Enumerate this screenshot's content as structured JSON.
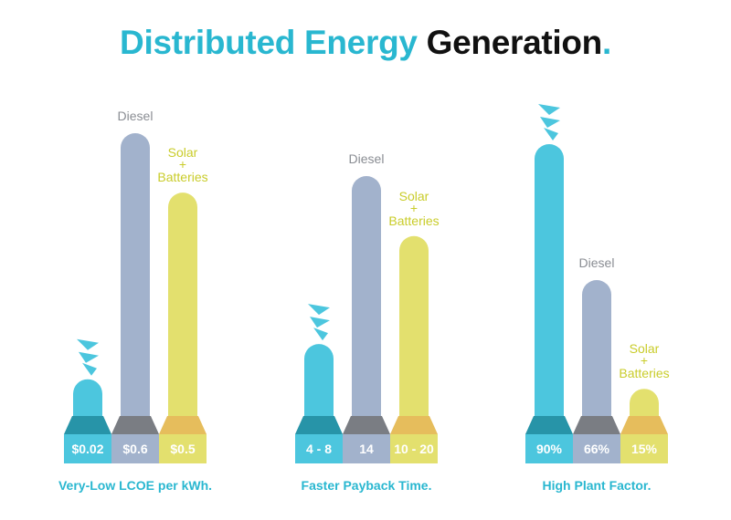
{
  "title": {
    "part1": "Distributed Energy",
    "part2": "Generation",
    "part3": "."
  },
  "colors": {
    "accent": "#29b7d0",
    "brand": "#4cc6de",
    "brand_base": "#2794a8",
    "brand_plate": "#4cc6de",
    "diesel": "#a2b2cc",
    "diesel_base": "#7a7d83",
    "diesel_plate": "#a2b2cc",
    "diesel_text": "#8a8d93",
    "solar": "#e3e06e",
    "solar_base": "#e6bd5c",
    "solar_plate": "#e3e06e",
    "solar_text": "#c9cc2a"
  },
  "chart_data": [
    {
      "type": "bar",
      "title": "Very-Low LCOE per kWh.",
      "categories": [
        "brand",
        "Diesel",
        "Solar + Batteries"
      ],
      "value_labels": [
        "$0.02",
        "$0.6",
        "$0.5"
      ],
      "values": [
        0.02,
        0.6,
        0.5
      ],
      "bar_levels": [
        0.13,
        1.0,
        0.79
      ]
    },
    {
      "type": "bar",
      "title": "Faster Payback Time.",
      "categories": [
        "brand",
        "Diesel",
        "Solar + Batteries"
      ],
      "value_labels": [
        "4 - 8",
        "14",
        "10 - 20"
      ],
      "values": [
        6,
        14,
        15
      ],
      "bar_levels": [
        0.3,
        1.0,
        0.75
      ]
    },
    {
      "type": "bar",
      "title": "High Plant Factor.",
      "categories": [
        "brand",
        "Diesel",
        "Solar + Batteries"
      ],
      "value_labels": [
        "90%",
        "66%",
        "15%"
      ],
      "values": [
        90,
        66,
        15
      ],
      "bar_levels": [
        1.0,
        0.5,
        0.1
      ]
    }
  ],
  "bar_text": {
    "diesel": "Diesel",
    "solar_line1": "Solar",
    "solar_line2": "+",
    "solar_line3": "Batteries"
  }
}
